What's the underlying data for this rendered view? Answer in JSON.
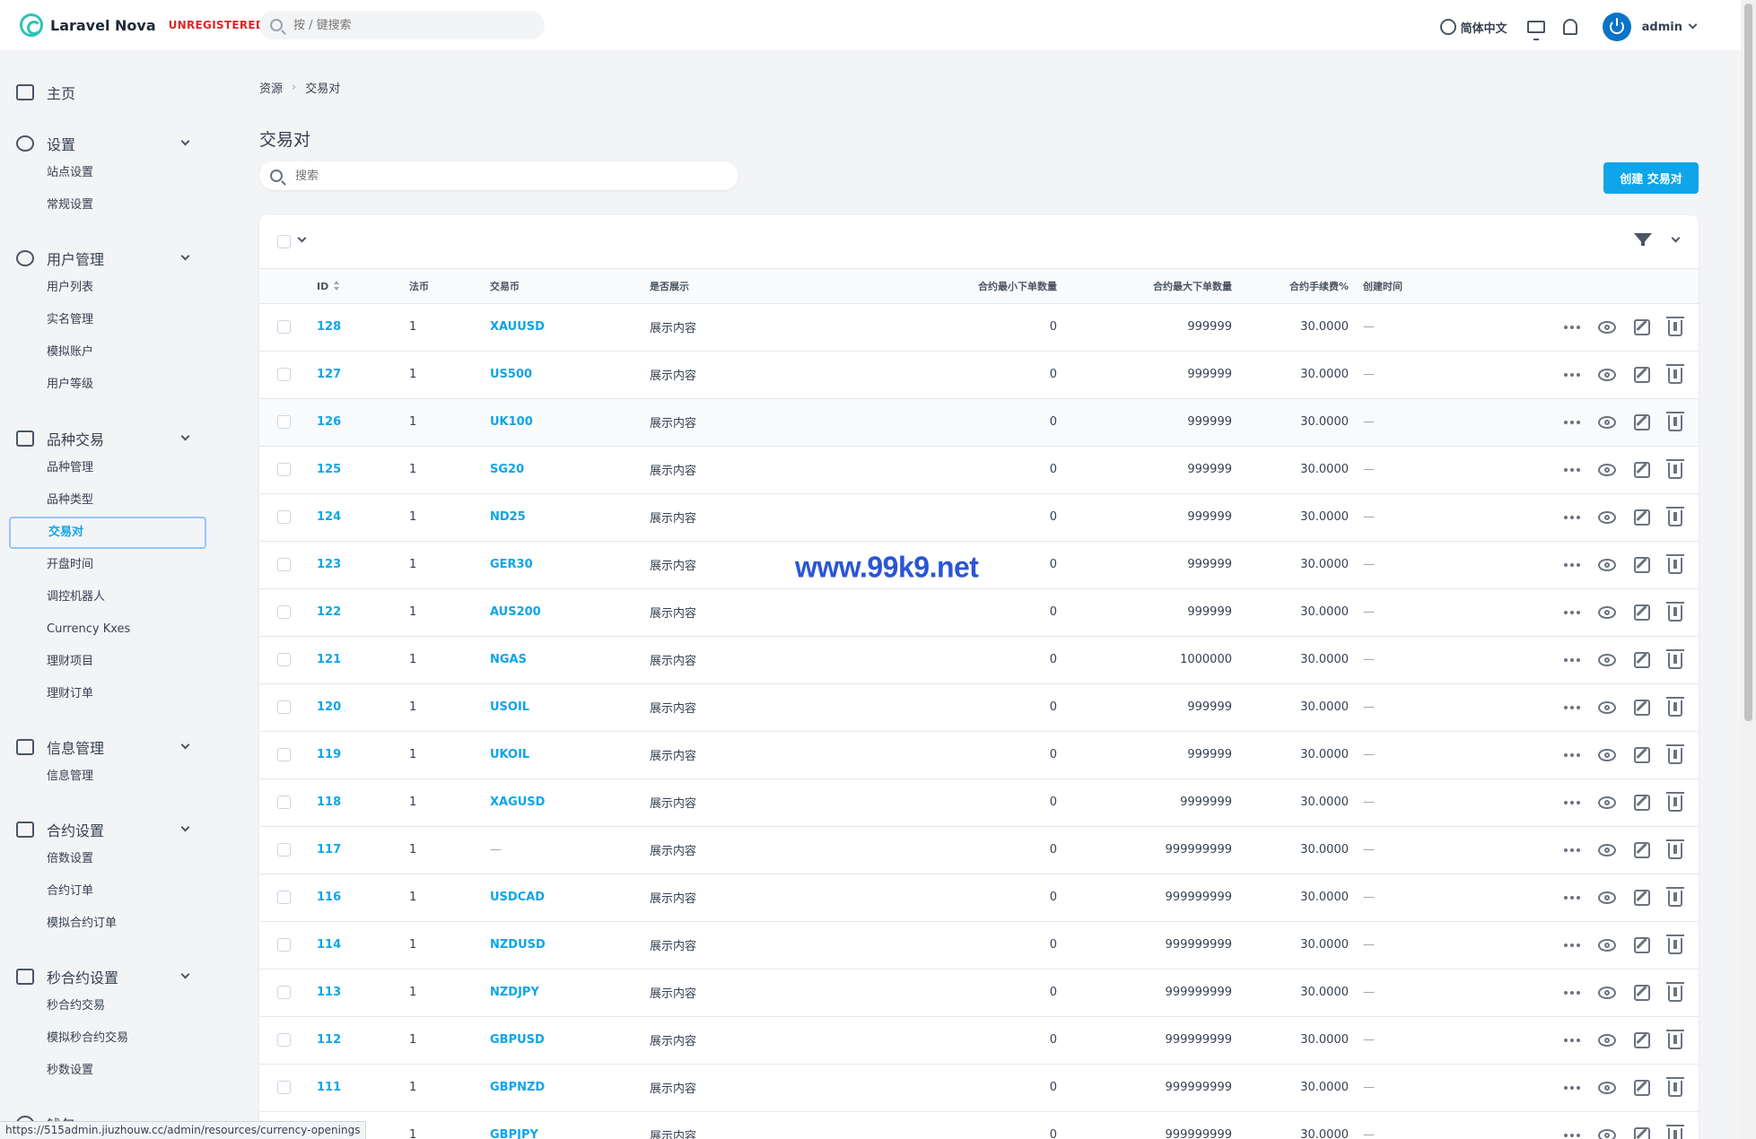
{
  "header": {
    "app_name": "Laravel Nova",
    "license_status": "UNREGISTERED",
    "search_placeholder": "按 / 键搜索",
    "language": "简体中文",
    "user": "admin"
  },
  "sidebar": {
    "dashboard": "主页",
    "groups": [
      {
        "label": "设置",
        "icon": "gear-icon",
        "items": [
          "站点设置",
          "常规设置"
        ]
      },
      {
        "label": "用户管理",
        "icon": "users-icon",
        "items": [
          "用户列表",
          "实名管理",
          "模拟账户",
          "用户等级"
        ]
      },
      {
        "label": "品种交易",
        "icon": "sliders-icon",
        "items": [
          "品种管理",
          "品种类型",
          "交易对",
          "开盘时间",
          "调控机器人",
          "Currency Kxes",
          "理财项目",
          "理财订单"
        ],
        "active": "交易对"
      },
      {
        "label": "信息管理",
        "icon": "message-icon",
        "items": [
          "信息管理"
        ]
      },
      {
        "label": "合约设置",
        "icon": "presentation-icon",
        "items": [
          "倍数设置",
          "合约订单",
          "模拟合约订单"
        ]
      },
      {
        "label": "秒合约设置",
        "icon": "chart-icon",
        "items": [
          "秒合约交易",
          "模拟秒合约交易",
          "秒数设置"
        ]
      }
    ],
    "partial_item": "钱包"
  },
  "breadcrumb": {
    "root": "资源",
    "current": "交易对"
  },
  "page": {
    "title": "交易对",
    "search_placeholder": "搜索",
    "create_button": "创建 交易对"
  },
  "table": {
    "columns": {
      "id": "ID",
      "fiat": "法币",
      "coin": "交易币",
      "display": "是否展示",
      "min_qty": "合约最小下单数量",
      "max_qty": "合约最大下单数量",
      "fee": "合约手续费%",
      "created": "创建时间"
    },
    "rows": [
      {
        "id": "128",
        "fiat": "1",
        "coin": "XAUUSD",
        "display": "展示内容",
        "min": "0",
        "max": "999999",
        "fee": "30.0000",
        "created": "—"
      },
      {
        "id": "127",
        "fiat": "1",
        "coin": "US500",
        "display": "展示内容",
        "min": "0",
        "max": "999999",
        "fee": "30.0000",
        "created": "—"
      },
      {
        "id": "126",
        "fiat": "1",
        "coin": "UK100",
        "display": "展示内容",
        "min": "0",
        "max": "999999",
        "fee": "30.0000",
        "created": "—"
      },
      {
        "id": "125",
        "fiat": "1",
        "coin": "SG20",
        "display": "展示内容",
        "min": "0",
        "max": "999999",
        "fee": "30.0000",
        "created": "—"
      },
      {
        "id": "124",
        "fiat": "1",
        "coin": "ND25",
        "display": "展示内容",
        "min": "0",
        "max": "999999",
        "fee": "30.0000",
        "created": "—"
      },
      {
        "id": "123",
        "fiat": "1",
        "coin": "GER30",
        "display": "展示内容",
        "min": "0",
        "max": "999999",
        "fee": "30.0000",
        "created": "—"
      },
      {
        "id": "122",
        "fiat": "1",
        "coin": "AUS200",
        "display": "展示内容",
        "min": "0",
        "max": "999999",
        "fee": "30.0000",
        "created": "—"
      },
      {
        "id": "121",
        "fiat": "1",
        "coin": "NGAS",
        "display": "展示内容",
        "min": "0",
        "max": "1000000",
        "fee": "30.0000",
        "created": "—"
      },
      {
        "id": "120",
        "fiat": "1",
        "coin": "USOIL",
        "display": "展示内容",
        "min": "0",
        "max": "999999",
        "fee": "30.0000",
        "created": "—"
      },
      {
        "id": "119",
        "fiat": "1",
        "coin": "UKOIL",
        "display": "展示内容",
        "min": "0",
        "max": "999999",
        "fee": "30.0000",
        "created": "—"
      },
      {
        "id": "118",
        "fiat": "1",
        "coin": "XAGUSD",
        "display": "展示内容",
        "min": "0",
        "max": "9999999",
        "fee": "30.0000",
        "created": "—"
      },
      {
        "id": "117",
        "fiat": "1",
        "coin": "—",
        "display": "展示内容",
        "min": "0",
        "max": "999999999",
        "fee": "30.0000",
        "created": "—"
      },
      {
        "id": "116",
        "fiat": "1",
        "coin": "USDCAD",
        "display": "展示内容",
        "min": "0",
        "max": "999999999",
        "fee": "30.0000",
        "created": "—"
      },
      {
        "id": "114",
        "fiat": "1",
        "coin": "NZDUSD",
        "display": "展示内容",
        "min": "0",
        "max": "999999999",
        "fee": "30.0000",
        "created": "—"
      },
      {
        "id": "113",
        "fiat": "1",
        "coin": "NZDJPY",
        "display": "展示内容",
        "min": "0",
        "max": "999999999",
        "fee": "30.0000",
        "created": "—"
      },
      {
        "id": "112",
        "fiat": "1",
        "coin": "GBPUSD",
        "display": "展示内容",
        "min": "0",
        "max": "999999999",
        "fee": "30.0000",
        "created": "—"
      },
      {
        "id": "111",
        "fiat": "1",
        "coin": "GBPNZD",
        "display": "展示内容",
        "min": "0",
        "max": "999999999",
        "fee": "30.0000",
        "created": "—"
      },
      {
        "id": "",
        "fiat": "1",
        "coin": "GBPJPY",
        "display": "展示内容",
        "min": "0",
        "max": "999999999",
        "fee": "30.0000",
        "created": "—"
      }
    ]
  },
  "watermark": "www.99k9.net",
  "status_url": "https://515admin.jiuzhouw.cc/admin/resources/currency-openings",
  "colors": {
    "accent": "#0ea5e9",
    "brand": "#2ec4b6",
    "unregistered": "#dc2626",
    "watermark": "#2b55d6"
  }
}
